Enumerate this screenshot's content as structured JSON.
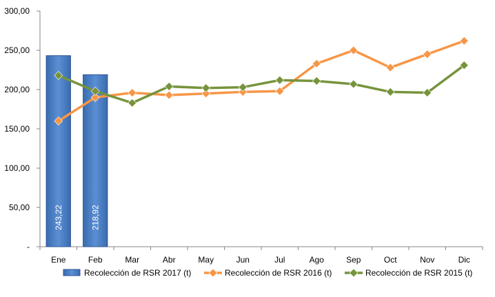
{
  "chart_data": {
    "type": "bar+line",
    "categories": [
      "Ene",
      "Feb",
      "Mar",
      "Abr",
      "May",
      "Jun",
      "Jul",
      "Ago",
      "Sep",
      "Oct",
      "Nov",
      "Dic"
    ],
    "ylim": [
      0,
      300
    ],
    "yticks": [
      0,
      50,
      100,
      150,
      200,
      250,
      300
    ],
    "ytick_labels": [
      "-",
      "50,00",
      "100,00",
      "150,00",
      "200,00",
      "250,00",
      "300,00"
    ],
    "grid": false,
    "legend_position": "bottom",
    "series": [
      {
        "name": "Recolección de RSR 2017 (t)",
        "kind": "bar",
        "color": "#4F81BD",
        "values": [
          243.22,
          218.92,
          null,
          null,
          null,
          null,
          null,
          null,
          null,
          null,
          null,
          null
        ],
        "data_labels": [
          "243,22",
          "218,92"
        ]
      },
      {
        "name": "Recolección de RSR 2016 (t)",
        "kind": "line",
        "marker": "diamond",
        "color": "#F79646",
        "values": [
          160,
          190,
          196,
          193,
          195,
          197,
          198,
          233,
          250,
          228,
          245,
          262
        ]
      },
      {
        "name": "Recolección de RSR 2015 (t)",
        "kind": "line",
        "marker": "diamond",
        "color": "#77933C",
        "values": [
          218,
          198,
          183,
          204,
          202,
          203,
          212,
          211,
          207,
          197,
          196,
          231
        ]
      }
    ]
  }
}
